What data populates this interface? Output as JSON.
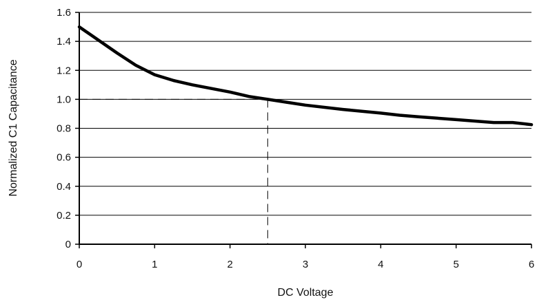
{
  "chart_data": {
    "type": "line",
    "title": "",
    "xlabel": "DC Voltage",
    "ylabel": "Normalized C1 Capacitance",
    "xlim": [
      0,
      6
    ],
    "ylim": [
      0,
      1.6
    ],
    "x_ticks": [
      "0",
      "1",
      "2",
      "3",
      "4",
      "5",
      "6"
    ],
    "y_ticks": [
      "0",
      "0.2",
      "0.4",
      "0.6",
      "0.8",
      "1.0",
      "1.2",
      "1.4",
      "1.6"
    ],
    "grid": "horizontal",
    "series": [
      {
        "x": [
          0,
          0.25,
          0.5,
          0.75,
          1.0,
          1.25,
          1.5,
          1.75,
          2.0,
          2.25,
          2.5,
          2.75,
          3.0,
          3.5,
          4.0,
          4.25,
          4.5,
          5.0,
          5.5,
          5.75,
          6.0
        ],
        "y": [
          1.5,
          1.41,
          1.32,
          1.235,
          1.17,
          1.13,
          1.1,
          1.075,
          1.05,
          1.02,
          1.0,
          0.98,
          0.96,
          0.93,
          0.905,
          0.89,
          0.88,
          0.86,
          0.84,
          0.84,
          0.825
        ]
      }
    ],
    "reference_point": {
      "x": 2.5,
      "y": 1.0
    }
  },
  "colors": {
    "curve": "#000000",
    "axis": "#000000",
    "grid": "#000000",
    "reference": "#000000"
  }
}
